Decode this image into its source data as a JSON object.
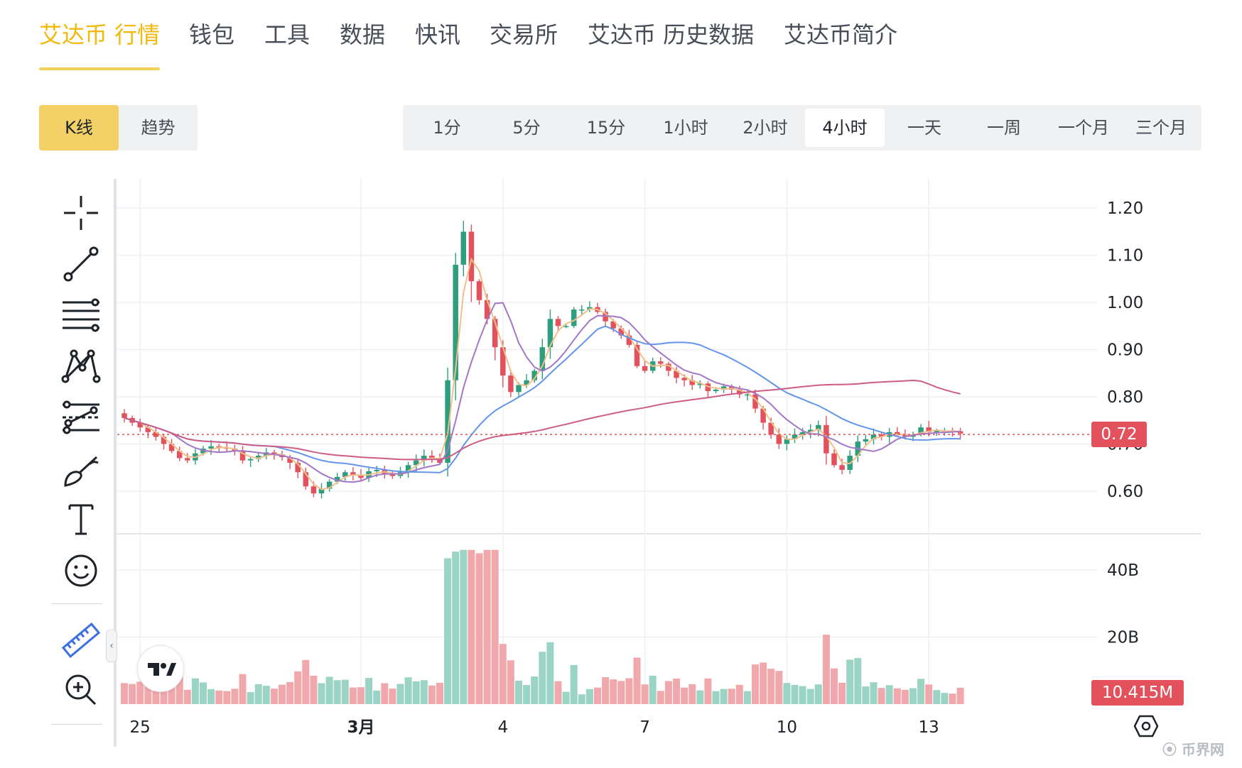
{
  "nav": {
    "tabs": [
      {
        "label": "艾达币 行情",
        "active": true
      },
      {
        "label": "钱包"
      },
      {
        "label": "工具"
      },
      {
        "label": "数据"
      },
      {
        "label": "快讯"
      },
      {
        "label": "交易所"
      },
      {
        "label": "艾达币 历史数据"
      },
      {
        "label": "艾达币简介"
      }
    ]
  },
  "chart_mode": {
    "kline": "K线",
    "trend": "趋势",
    "active": "kline"
  },
  "intervals": {
    "items": [
      "1分",
      "5分",
      "15分",
      "1小时",
      "2小时",
      "4小时",
      "一天",
      "一周",
      "一个月",
      "三个月"
    ],
    "active": "4小时"
  },
  "toolbar": {
    "tools": [
      "crosshair-icon",
      "trendline-icon",
      "fib-retracement-icon",
      "pattern-icon",
      "prediction-icon",
      "brush-icon",
      "text-icon",
      "emoji-icon",
      "ruler-icon",
      "zoom-in-icon"
    ]
  },
  "chart_data": {
    "type": "candlestick",
    "price_axis": {
      "ticks": [
        "1.20",
        "1.10",
        "1.00",
        "0.90",
        "0.80",
        "0.70",
        "0.60"
      ],
      "range": [
        0.52,
        1.25
      ]
    },
    "volume_axis": {
      "ticks": [
        "40B",
        "20B"
      ],
      "range_billion": [
        0,
        47
      ]
    },
    "x_labels": [
      {
        "text": "25",
        "index": 2
      },
      {
        "text": "3月",
        "index": 30
      },
      {
        "text": "4",
        "index": 48
      },
      {
        "text": "7",
        "index": 66
      },
      {
        "text": "10",
        "index": 84
      },
      {
        "text": "13",
        "index": 102
      }
    ],
    "last_price": "0.72",
    "last_volume": "10.415M",
    "colors": {
      "up": "#2e9e7f",
      "down": "#e2515c",
      "vol_up": "#9bd4c4",
      "vol_down": "#f0a8ad",
      "ma_fast": "#efc08a",
      "ma_mid": "#a276c9",
      "ma_slow": "#6495ed",
      "ma_long": "#cd5c86"
    },
    "closes": [
      0.755,
      0.745,
      0.735,
      0.725,
      0.715,
      0.7,
      0.685,
      0.67,
      0.665,
      0.68,
      0.69,
      0.695,
      0.692,
      0.69,
      0.685,
      0.665,
      0.668,
      0.675,
      0.682,
      0.678,
      0.672,
      0.66,
      0.64,
      0.61,
      0.595,
      0.605,
      0.62,
      0.63,
      0.64,
      0.633,
      0.628,
      0.642,
      0.645,
      0.635,
      0.632,
      0.64,
      0.655,
      0.665,
      0.675,
      0.67,
      0.66,
      0.835,
      1.08,
      1.15,
      1.045,
      1.005,
      0.965,
      0.905,
      0.845,
      0.81,
      0.825,
      0.835,
      0.855,
      0.905,
      0.965,
      0.95,
      0.95,
      0.985,
      0.985,
      0.99,
      0.98,
      0.96,
      0.945,
      0.93,
      0.91,
      0.865,
      0.855,
      0.875,
      0.87,
      0.855,
      0.84,
      0.835,
      0.825,
      0.828,
      0.812,
      0.815,
      0.822,
      0.815,
      0.805,
      0.805,
      0.775,
      0.745,
      0.72,
      0.7,
      0.71,
      0.72,
      0.725,
      0.73,
      0.74,
      0.68,
      0.655,
      0.645,
      0.675,
      0.705,
      0.71,
      0.72,
      0.715,
      0.725,
      0.72,
      0.715,
      0.72,
      0.735,
      0.725,
      0.728,
      0.728,
      0.727,
      0.722
    ]
  }
}
